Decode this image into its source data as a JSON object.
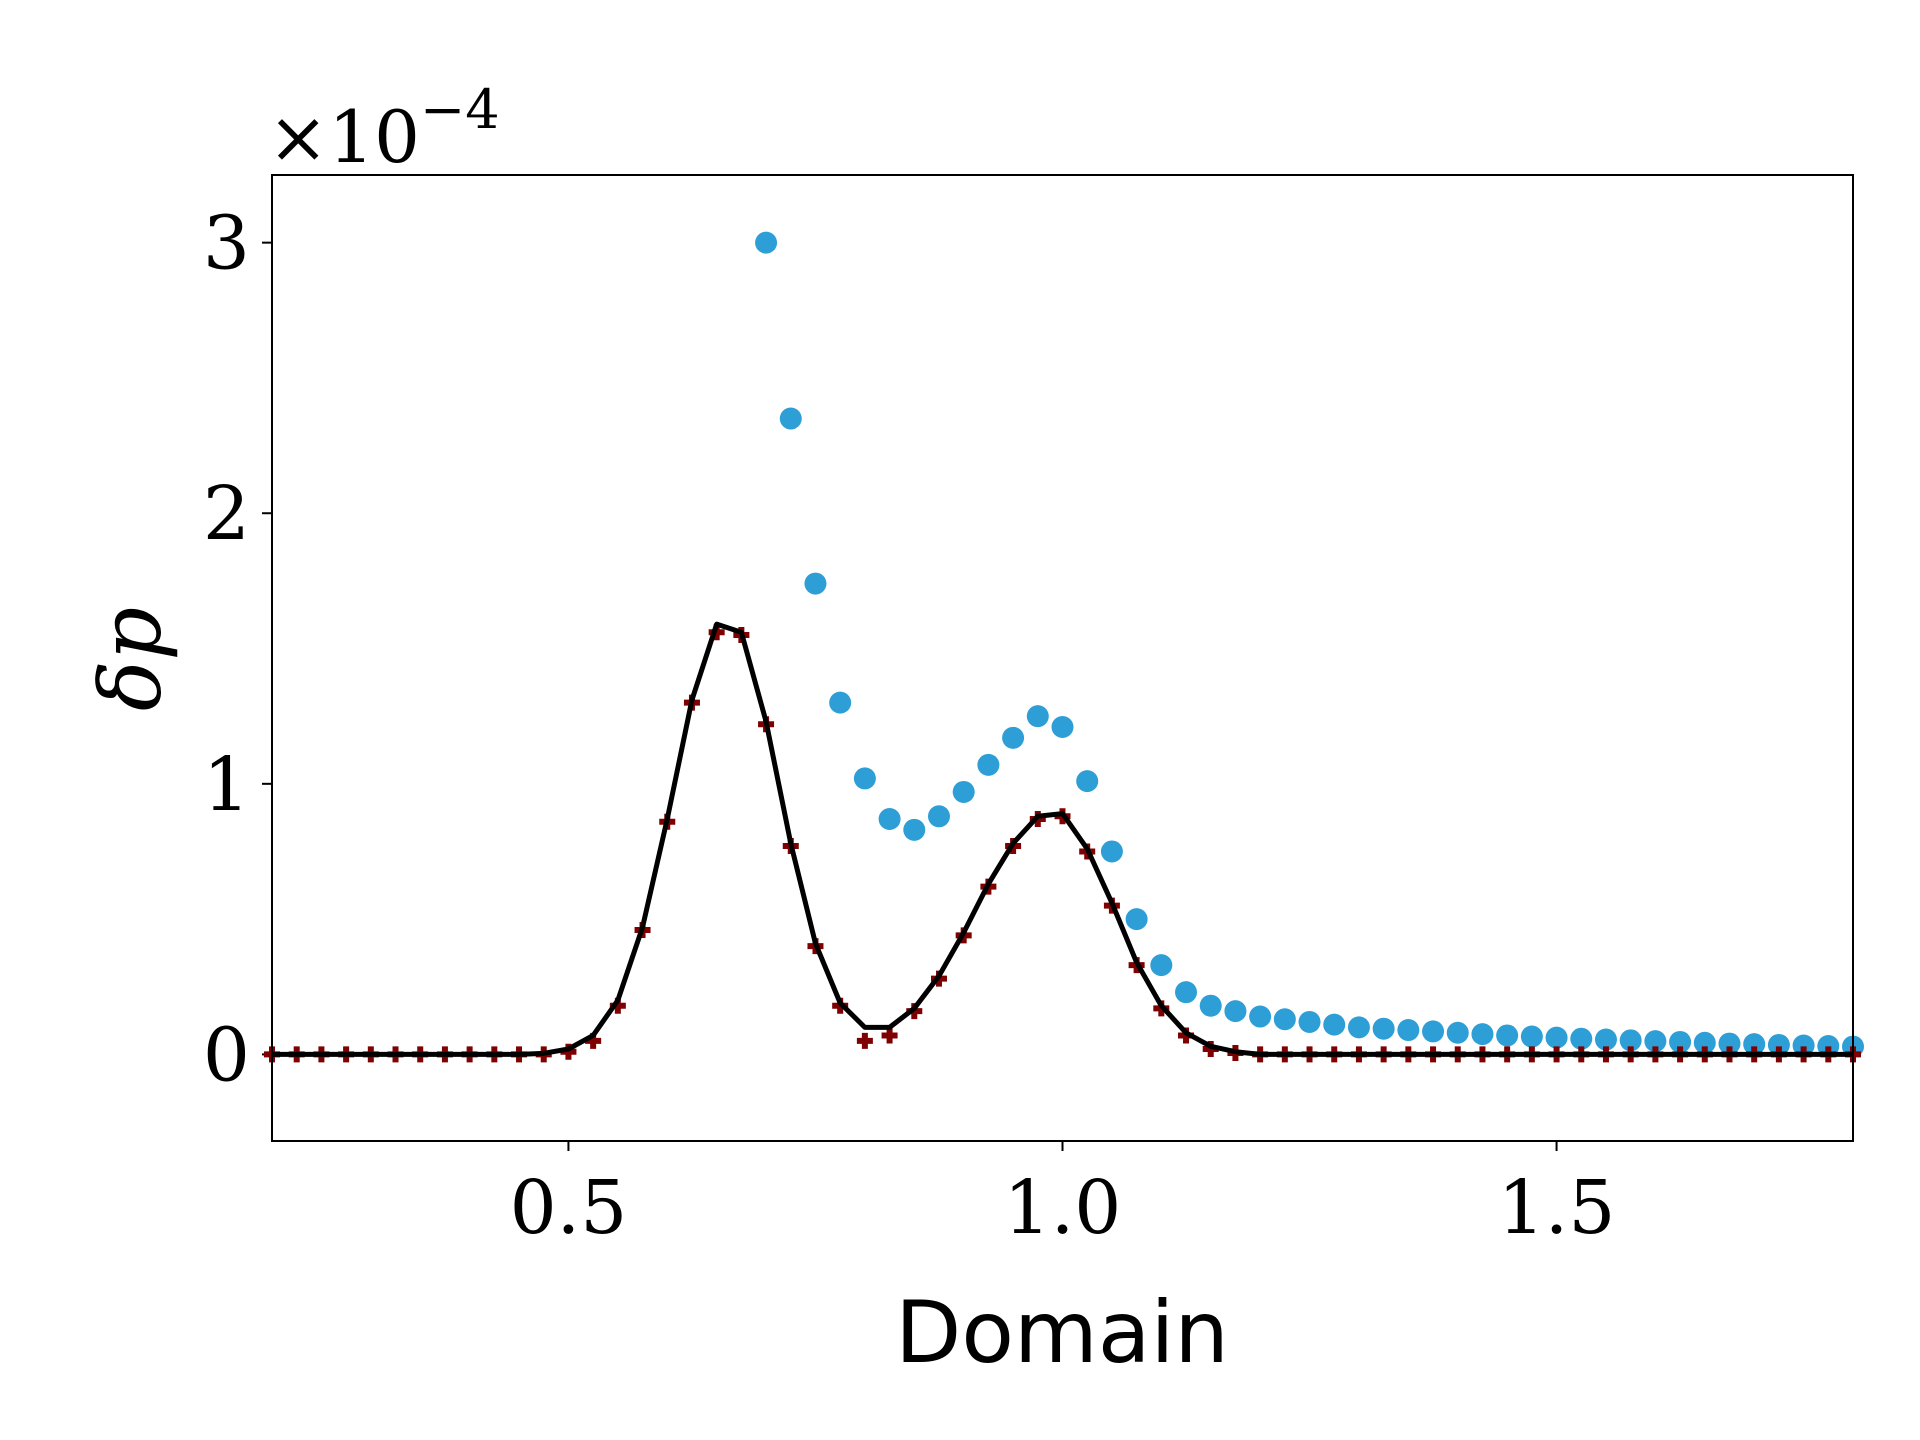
{
  "chart_data": {
    "type": "scatter",
    "xlabel": "Domain",
    "ylabel": "δp",
    "y_offset_label": {
      "base": "×10",
      "exponent": "−4"
    },
    "xlim": [
      0.2,
      1.8
    ],
    "ylim": [
      -0.32,
      3.25
    ],
    "xticks": [
      0.5,
      {
        "value": 1.0,
        "label": "1.0"
      },
      1.5
    ],
    "yticks": [
      0,
      1,
      2,
      3
    ],
    "series": [
      {
        "marker": "circle",
        "color": "#2e9fd6",
        "x": [
          0.7,
          0.725,
          0.75,
          0.775,
          0.8,
          0.825,
          0.85,
          0.875,
          0.9,
          0.925,
          0.95,
          0.975,
          1.0,
          1.025,
          1.05,
          1.075,
          1.1,
          1.125,
          1.15,
          1.175,
          1.2,
          1.225,
          1.25,
          1.275,
          1.3,
          1.325,
          1.35,
          1.375,
          1.4,
          1.425,
          1.45,
          1.475,
          1.5,
          1.525,
          1.55,
          1.575,
          1.6,
          1.625,
          1.65,
          1.675,
          1.7,
          1.725,
          1.75,
          1.775,
          1.8
        ],
        "values": [
          3.0,
          2.35,
          1.74,
          1.3,
          1.02,
          0.87,
          0.83,
          0.88,
          0.97,
          1.07,
          1.17,
          1.25,
          1.21,
          1.01,
          0.75,
          0.5,
          0.33,
          0.23,
          0.18,
          0.16,
          0.14,
          0.13,
          0.12,
          0.11,
          0.1,
          0.095,
          0.09,
          0.085,
          0.08,
          0.075,
          0.07,
          0.066,
          0.062,
          0.058,
          0.055,
          0.052,
          0.049,
          0.046,
          0.043,
          0.04,
          0.038,
          0.035,
          0.033,
          0.031,
          0.029
        ]
      },
      {
        "marker": "plus",
        "color": "#7f0000",
        "x": [
          0.2,
          0.225,
          0.25,
          0.275,
          0.3,
          0.325,
          0.35,
          0.375,
          0.4,
          0.425,
          0.45,
          0.475,
          0.5,
          0.525,
          0.55,
          0.575,
          0.6,
          0.625,
          0.65,
          0.675,
          0.7,
          0.725,
          0.75,
          0.775,
          0.8,
          0.825,
          0.85,
          0.875,
          0.9,
          0.925,
          0.95,
          0.975,
          1.0,
          1.025,
          1.05,
          1.075,
          1.1,
          1.125,
          1.15,
          1.175,
          1.2,
          1.225,
          1.25,
          1.275,
          1.3,
          1.325,
          1.35,
          1.375,
          1.4,
          1.425,
          1.45,
          1.475,
          1.5,
          1.525,
          1.55,
          1.575,
          1.6,
          1.625,
          1.65,
          1.675,
          1.7,
          1.725,
          1.75,
          1.775,
          1.8
        ],
        "values": [
          0,
          0,
          0,
          0,
          0,
          0,
          0,
          0,
          0,
          0,
          0,
          0,
          0.01,
          0.05,
          0.18,
          0.46,
          0.86,
          1.3,
          1.56,
          1.55,
          1.22,
          0.77,
          0.4,
          0.18,
          0.05,
          0.07,
          0.16,
          0.28,
          0.44,
          0.62,
          0.77,
          0.87,
          0.88,
          0.75,
          0.55,
          0.33,
          0.17,
          0.07,
          0.02,
          0.005,
          0,
          0,
          0,
          0,
          0,
          0,
          0,
          0,
          0,
          0,
          0,
          0,
          0,
          0,
          0,
          0,
          0,
          0,
          0,
          0,
          0,
          0,
          0,
          0,
          0
        ]
      },
      {
        "marker": "line",
        "color": "#000000",
        "x": [
          0.2,
          0.225,
          0.25,
          0.275,
          0.3,
          0.325,
          0.35,
          0.375,
          0.4,
          0.425,
          0.45,
          0.475,
          0.5,
          0.525,
          0.55,
          0.575,
          0.6,
          0.625,
          0.65,
          0.675,
          0.7,
          0.725,
          0.75,
          0.775,
          0.8,
          0.825,
          0.85,
          0.875,
          0.9,
          0.925,
          0.95,
          0.975,
          1.0,
          1.025,
          1.05,
          1.075,
          1.1,
          1.125,
          1.15,
          1.175,
          1.2,
          1.225,
          1.25,
          1.275,
          1.3,
          1.325,
          1.35,
          1.375,
          1.4,
          1.425,
          1.45,
          1.475,
          1.5,
          1.525,
          1.55,
          1.575,
          1.6,
          1.625,
          1.65,
          1.675,
          1.7,
          1.725,
          1.75,
          1.775,
          1.8
        ],
        "values": [
          0,
          0,
          0,
          0,
          0,
          0,
          0,
          0,
          0,
          0,
          0,
          0.004,
          0.02,
          0.07,
          0.2,
          0.47,
          0.87,
          1.31,
          1.59,
          1.56,
          1.23,
          0.78,
          0.41,
          0.19,
          0.1,
          0.1,
          0.17,
          0.29,
          0.45,
          0.63,
          0.78,
          0.88,
          0.89,
          0.76,
          0.56,
          0.34,
          0.18,
          0.08,
          0.03,
          0.01,
          0,
          0,
          0,
          0,
          0,
          0,
          0,
          0,
          0,
          0,
          0,
          0,
          0,
          0,
          0,
          0,
          0,
          0,
          0,
          0,
          0,
          0,
          0,
          0,
          0
        ]
      }
    ]
  }
}
